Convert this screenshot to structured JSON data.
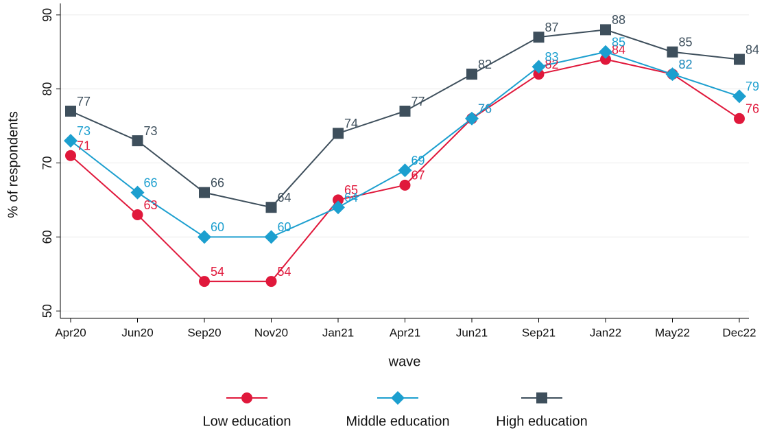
{
  "chart_data": {
    "type": "line",
    "y_label": "% of respondents",
    "x_label": "wave",
    "categories": [
      "Apr20",
      "Jun20",
      "Sep20",
      "Nov20",
      "Jan21",
      "Apr21",
      "Jun21",
      "Sep21",
      "Jan22",
      "May22",
      "Dec22"
    ],
    "series": [
      {
        "name": "Low education",
        "color": "#e0183b",
        "marker": "circle",
        "values": [
          71,
          63,
          54,
          54,
          65,
          67,
          76,
          82,
          84,
          82,
          76
        ]
      },
      {
        "name": "Middle education",
        "color": "#1c9fcf",
        "marker": "diamond",
        "values": [
          73,
          66,
          60,
          60,
          64,
          69,
          76,
          83,
          85,
          82,
          79
        ]
      },
      {
        "name": "High education",
        "color": "#3e4f5c",
        "marker": "square",
        "values": [
          77,
          73,
          66,
          64,
          74,
          77,
          82,
          87,
          88,
          85,
          84
        ]
      }
    ],
    "ylim": [
      49,
      91
    ],
    "yticks": [
      50,
      60,
      70,
      80,
      90
    ],
    "grid": true,
    "legend": "bottom"
  }
}
